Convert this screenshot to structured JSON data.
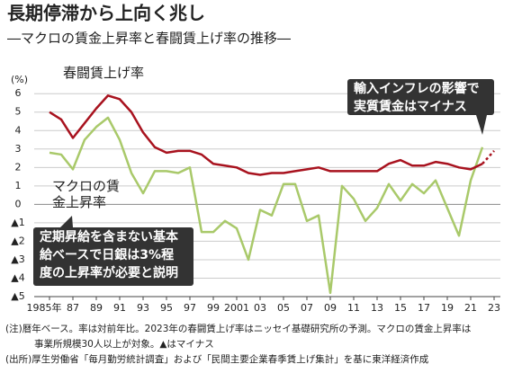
{
  "chart_data": {
    "type": "line",
    "title": "長期停滞から上向く兆し",
    "subtitle": "―マクロの賃金上昇率と春闘賃上げ率の推移―",
    "y_unit": "(%)",
    "categories": [
      "1985年",
      null,
      "87",
      null,
      "89",
      null,
      "91",
      null,
      "93",
      null,
      "95",
      null,
      "97",
      null,
      "99",
      null,
      "2001",
      null,
      "03",
      null,
      "05",
      null,
      "07",
      null,
      "09",
      null,
      "11",
      null,
      "13",
      null,
      "15",
      null,
      "17",
      null,
      "19",
      null,
      "21",
      null,
      "23"
    ],
    "series": [
      {
        "name": "春闘賃上げ率",
        "color": "#a8121e",
        "values": [
          5.0,
          4.6,
          3.6,
          4.4,
          5.2,
          5.9,
          5.7,
          5.0,
          3.9,
          3.1,
          2.8,
          2.9,
          2.9,
          2.7,
          2.2,
          2.1,
          2.0,
          1.7,
          1.6,
          1.7,
          1.7,
          1.8,
          1.9,
          2.0,
          1.8,
          1.8,
          1.8,
          1.8,
          1.8,
          2.2,
          2.4,
          2.1,
          2.1,
          2.3,
          2.2,
          2.0,
          1.9,
          2.2,
          2.9
        ]
      },
      {
        "name": "マクロの賃金上昇率",
        "color": "#a9c96a",
        "values": [
          2.8,
          2.7,
          1.9,
          3.5,
          4.2,
          4.7,
          3.5,
          1.7,
          0.6,
          1.8,
          1.8,
          1.7,
          2.0,
          -1.5,
          -1.5,
          -0.9,
          -1.3,
          -3.0,
          -0.3,
          -0.6,
          1.1,
          1.1,
          -0.9,
          -0.6,
          -4.8,
          1.0,
          0.3,
          -0.9,
          -0.2,
          1.1,
          0.2,
          1.1,
          0.6,
          1.3,
          -0.2,
          -1.7,
          1.3,
          3.1,
          null
        ]
      }
    ],
    "ylim": [
      -5,
      6.4
    ],
    "yticks": [
      6,
      5,
      4,
      3,
      2,
      1,
      0,
      {
        "value": -1,
        "label": "▲1"
      },
      {
        "value": -2,
        "label": "▲2"
      },
      {
        "value": -3,
        "label": "▲3"
      },
      {
        "value": -4,
        "label": "▲4"
      },
      {
        "value": -5,
        "label": "▲5"
      }
    ],
    "grid": true,
    "annotations": [
      {
        "lines": [
          "輸入インフレの影響で",
          "実質賃金はマイナス"
        ]
      },
      {
        "lines": [
          "定期昇給を含まない基本",
          "給ベースで日銀は3%程",
          "度の上昇率が必要と説明"
        ]
      }
    ],
    "notes": [
      "(注)暦年ベース。率は対前年比。2023年の春闘賃上げ率はニッセイ基礎研究所の予測。マクロの賃金上昇率は",
      "事業所規模30人以上が対象。▲はマイナス",
      "(出所)厚生労働省「毎月勤労統計調査」および「民間主要企業春季賃上げ集計」を基に東洋経済作成"
    ]
  }
}
